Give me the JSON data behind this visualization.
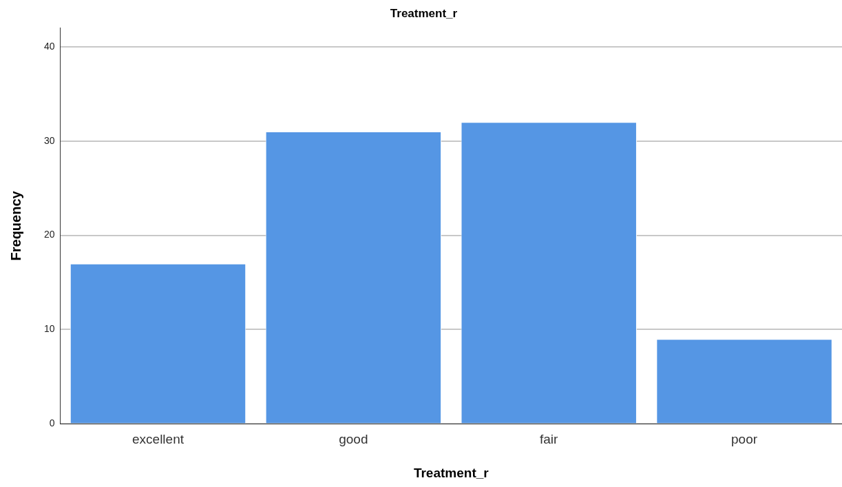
{
  "chart_data": {
    "type": "bar",
    "title": "Treatment_r",
    "xlabel": "Treatment_r",
    "ylabel": "Frequency",
    "categories": [
      "excellent",
      "good",
      "fair",
      "poor"
    ],
    "values": [
      17,
      31,
      32,
      9
    ],
    "color": "#5596e4",
    "ylim": [
      0,
      42
    ],
    "yticks": [
      0,
      10,
      20,
      30,
      40
    ],
    "grid": "y",
    "legend": false
  }
}
